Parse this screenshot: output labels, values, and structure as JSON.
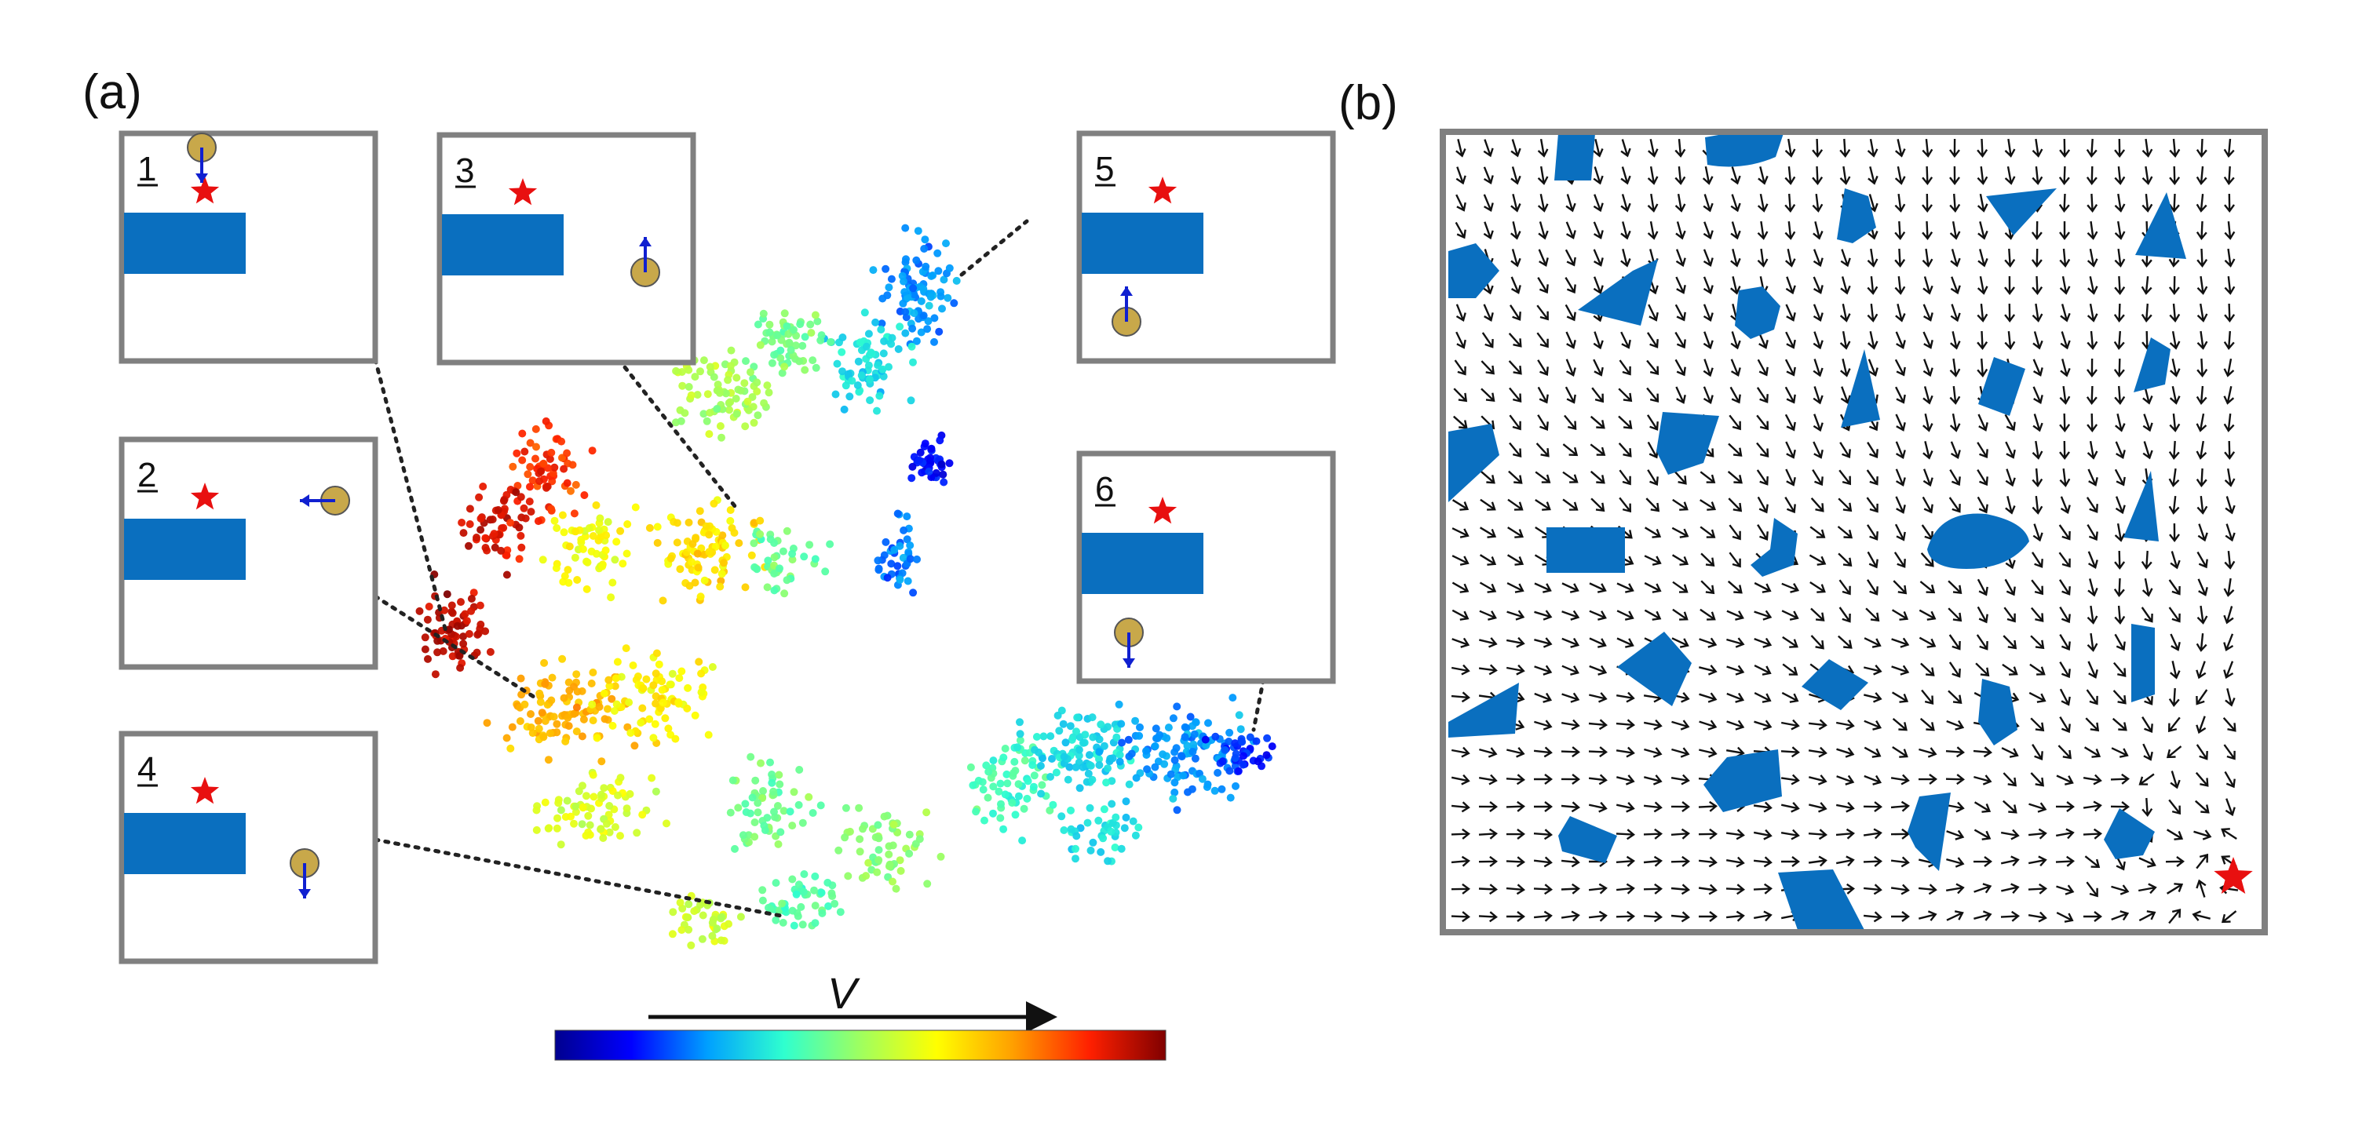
{
  "figure": {
    "panel_a_label": "(a)",
    "panel_b_label": "(b)",
    "colorbar_label": "V",
    "colorbar_colors": [
      "#00008f",
      "#0000ff",
      "#00a0ff",
      "#2fffcf",
      "#9fff5f",
      "#ffff00",
      "#ff9f00",
      "#ff2000",
      "#800000"
    ],
    "obstacle_color": "#0a6fbf",
    "agent_color": "#c8a84a",
    "arrow_color": "#1020d0",
    "star_color": "#e81010",
    "frame_color": "#808080"
  },
  "insets": [
    {
      "number": "1",
      "direction": "down"
    },
    {
      "number": "2",
      "direction": "left"
    },
    {
      "number": "3",
      "direction": "up"
    },
    {
      "number": "4",
      "direction": "down"
    },
    {
      "number": "5",
      "direction": "up"
    },
    {
      "number": "6",
      "direction": "down"
    }
  ]
}
